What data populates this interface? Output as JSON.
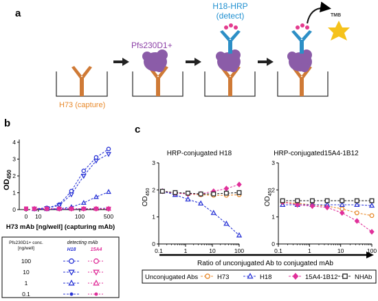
{
  "colors": {
    "h73": "#e8892b",
    "h18": "#2a35d6",
    "a15": "#e0309a",
    "nhab": "#222222",
    "antibody_capture": "#cf7a36",
    "antigen": "#8b5ca8",
    "detect_ab": "#2c8fc6",
    "hrp": "#e43b8e",
    "tmb": "#f5c21b"
  },
  "panel_a": {
    "letter": "a",
    "capture_label": "H73 (capture)",
    "antigen_label": "Pfs230D1+",
    "detect_label_1": "H18-HRP",
    "detect_label_2": "(detect)",
    "substrate_label": "TMB"
  },
  "panel_b": {
    "letter": "b",
    "ylabel_main": "OD",
    "ylabel_sub": "450",
    "xlabel": "H73 mAb [ng/well] (capturing mAb)",
    "legend": {
      "col1_1": "Pfs230D1+ conc.",
      "col1_2": "[ng/well]",
      "col2_1": "detecting mAb",
      "h18": "H18",
      "a15": "15A4",
      "rows": [
        "100",
        "10",
        "1",
        "0.1"
      ]
    }
  },
  "panel_c": {
    "letter": "c",
    "xlabel": "Ratio of unconjugated Ab to conjugated mAb",
    "ylabel_main": "OD",
    "ylabel_sub": "450",
    "legend": {
      "title": "Unconjugated Abs",
      "items": [
        {
          "key": "h73",
          "label": "H73",
          "marker": "circle"
        },
        {
          "key": "h18",
          "label": "H18",
          "marker": "triangle"
        },
        {
          "key": "a15",
          "label": "15A4-1B12",
          "marker": "diamond"
        },
        {
          "key": "nhab",
          "label": "NHAb",
          "marker": "square"
        }
      ]
    }
  },
  "chart_data": [
    {
      "type": "line",
      "panel": "b",
      "ylabel": "OD450",
      "xlabel": "H73 mAb [ng/well] (capturing mAb)",
      "xscale": "log (with 0 break)",
      "x_ticks": [
        "0",
        "10",
        "100",
        "500"
      ],
      "y_ticks": [
        0,
        1,
        2,
        3,
        4
      ],
      "ylim": [
        0,
        4
      ],
      "x": [
        0,
        8,
        16,
        32,
        63,
        125,
        250,
        500
      ],
      "series": [
        {
          "name": "H18 100",
          "values": [
            0.05,
            0.05,
            0.1,
            0.3,
            1.1,
            2.3,
            3.1,
            3.6
          ]
        },
        {
          "name": "H18 10",
          "values": [
            0.05,
            0.05,
            0.08,
            0.25,
            0.9,
            2.0,
            2.9,
            3.3
          ]
        },
        {
          "name": "H18 1",
          "values": [
            0.05,
            0.03,
            0.03,
            0.05,
            0.15,
            0.4,
            0.75,
            1.05
          ]
        },
        {
          "name": "H18 0.1",
          "values": [
            0.05,
            0.02,
            0.02,
            0.02,
            0.03,
            0.04,
            0.06,
            0.08
          ]
        },
        {
          "name": "15A4 100",
          "values": [
            0.05,
            0.05,
            0.05,
            0.05,
            0.05,
            0.05,
            0.05,
            0.05
          ]
        },
        {
          "name": "15A4 10",
          "values": [
            0.05,
            0.05,
            0.05,
            0.05,
            0.05,
            0.05,
            0.05,
            0.05
          ]
        },
        {
          "name": "15A4 1",
          "values": [
            0.05,
            0.05,
            0.05,
            0.05,
            0.05,
            0.05,
            0.05,
            0.05
          ]
        },
        {
          "name": "15A4 0.1",
          "values": [
            0.05,
            0.05,
            0.05,
            0.05,
            0.05,
            0.05,
            0.05,
            0.05
          ]
        }
      ]
    },
    {
      "type": "line",
      "panel": "c-left",
      "title": "HRP-conjugated H18",
      "ylabel": "OD450",
      "xscale": "log",
      "x_ticks": [
        "0.1",
        "1",
        "10",
        "100"
      ],
      "y_ticks": [
        0,
        1,
        2,
        3
      ],
      "ylim": [
        0,
        3
      ],
      "x": [
        0.137,
        0.41,
        1.23,
        3.7,
        11.1,
        33.3,
        100
      ],
      "series": [
        {
          "name": "H73",
          "values": [
            1.95,
            1.9,
            1.85,
            1.82,
            1.8,
            1.8,
            1.82
          ]
        },
        {
          "name": "H18",
          "values": [
            1.95,
            1.82,
            1.65,
            1.5,
            1.15,
            0.75,
            0.32
          ]
        },
        {
          "name": "15A4-1B12",
          "values": [
            1.95,
            1.88,
            1.85,
            1.85,
            1.95,
            2.05,
            2.2
          ]
        },
        {
          "name": "NHAb",
          "values": [
            1.95,
            1.9,
            1.88,
            1.85,
            1.85,
            1.88,
            1.9
          ]
        }
      ]
    },
    {
      "type": "line",
      "panel": "c-right",
      "title": "HRP-conjugated15A4-1B12",
      "ylabel": "OD450",
      "xscale": "log",
      "x_ticks": [
        "0.1",
        "1",
        "10",
        "100"
      ],
      "y_ticks": [
        0,
        1,
        2,
        3
      ],
      "ylim": [
        0,
        3
      ],
      "x": [
        0.137,
        0.41,
        1.23,
        3.7,
        11.1,
        33.3,
        100
      ],
      "series": [
        {
          "name": "H73",
          "values": [
            1.55,
            1.5,
            1.45,
            1.4,
            1.3,
            1.15,
            1.05
          ]
        },
        {
          "name": "H18",
          "values": [
            1.45,
            1.45,
            1.45,
            1.45,
            1.45,
            1.45,
            1.42
          ]
        },
        {
          "name": "15A4-1B12",
          "values": [
            1.55,
            1.45,
            1.4,
            1.35,
            1.15,
            0.85,
            0.45
          ]
        },
        {
          "name": "NHAb",
          "values": [
            1.6,
            1.6,
            1.6,
            1.6,
            1.6,
            1.6,
            1.6
          ]
        }
      ]
    }
  ]
}
